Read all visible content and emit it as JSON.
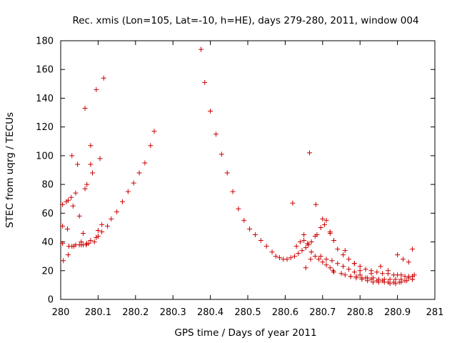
{
  "chart_data": {
    "type": "scatter",
    "title": "Rec. xmis (Lon=105, Lat=-10, h=HE), days 279-280, 2011, window 004",
    "xlabel": "GPS time / Days of year 2011",
    "ylabel": "STEC from uqrg / TECUs",
    "xlim": [
      280,
      281
    ],
    "ylim": [
      0,
      180
    ],
    "xticks": [
      280,
      280.1,
      280.2,
      280.3,
      280.4,
      280.5,
      280.6,
      280.7,
      280.8,
      280.9,
      281
    ],
    "xtick_labels": [
      "280",
      "280.1",
      "280.2",
      "280.3",
      "280.4",
      "280.5",
      "280.6",
      "280.7",
      "280.8",
      "280.9",
      "281"
    ],
    "yticks": [
      0,
      20,
      40,
      60,
      80,
      100,
      120,
      140,
      160,
      180
    ],
    "ytick_labels": [
      "0",
      "20",
      "40",
      "60",
      "80",
      "100",
      "120",
      "140",
      "160",
      "180"
    ],
    "grid": false,
    "marker": "plus",
    "color": "#cc0000",
    "series": [
      {
        "name": "STEC",
        "x": [
          280.005,
          280.005,
          280.005,
          280.007,
          280.015,
          280.018,
          280.02,
          280.022,
          280.03,
          280.035,
          280.045,
          280.055,
          280.06,
          280.065,
          280.07,
          280.075,
          280.085,
          280.095,
          280.105,
          280.115,
          280.028,
          280.033,
          280.04,
          280.05,
          280.055,
          280.065,
          280.068,
          280.08,
          280.08,
          280.095,
          280.1,
          280.11,
          280.02,
          280.03,
          280.04,
          280.05,
          280.06,
          280.07,
          280.08,
          280.09,
          280.1,
          280.11,
          280.125,
          280.135,
          280.15,
          280.165,
          280.18,
          280.195,
          280.21,
          280.225,
          280.24,
          280.25,
          280.375,
          280.385,
          280.4,
          280.415,
          280.43,
          280.445,
          280.46,
          280.475,
          280.49,
          280.505,
          280.52,
          280.535,
          280.55,
          280.565,
          280.575,
          280.585,
          280.595,
          280.605,
          280.615,
          280.625,
          280.635,
          280.645,
          280.655,
          280.662,
          280.67,
          280.685,
          280.695,
          280.71,
          280.72,
          280.73,
          280.74,
          280.755,
          280.77,
          280.785,
          280.8,
          280.815,
          280.83,
          280.845,
          280.86,
          280.875,
          280.89,
          280.9,
          280.91,
          280.92,
          280.93,
          280.94,
          280.945,
          280.62,
          280.63,
          280.64,
          280.65,
          280.66,
          280.67,
          280.68,
          280.69,
          280.7,
          280.71,
          280.72,
          280.728,
          280.73,
          280.75,
          280.76,
          280.775,
          280.79,
          280.805,
          280.82,
          280.835,
          280.85,
          280.865,
          280.88,
          280.895,
          280.91,
          280.93,
          280.94,
          280.65,
          280.655,
          280.668,
          280.68,
          280.695,
          280.71,
          280.725,
          280.74,
          280.755,
          280.77,
          280.785,
          280.8,
          280.815,
          280.83,
          280.845,
          280.86,
          280.875,
          280.89,
          280.905,
          280.92,
          280.94,
          280.665,
          280.682,
          280.7,
          280.705,
          280.72,
          280.76,
          280.785,
          280.8,
          280.83,
          280.855,
          280.875,
          280.9,
          280.915,
          280.93,
          280.94,
          280.775,
          280.79,
          280.805,
          280.82,
          280.835,
          280.85,
          280.865,
          280.88,
          280.895,
          280.91,
          280.925,
          280.94
        ],
        "y": [
          66,
          51,
          39,
          27,
          68,
          49,
          31,
          37,
          100,
          37,
          94,
          38,
          46,
          133,
          80,
          39,
          88,
          43,
          98,
          154,
          71,
          65,
          74,
          58,
          40,
          77,
          38,
          107,
          94,
          146,
          48,
          52,
          69,
          37,
          38,
          38,
          38,
          39,
          41,
          40,
          44,
          47,
          51,
          56,
          61,
          68,
          75,
          81,
          88,
          95,
          107,
          117,
          174,
          151,
          131,
          115,
          101,
          88,
          75,
          63,
          55,
          49,
          45,
          41,
          37,
          33,
          30,
          29,
          28,
          28,
          29,
          30,
          32,
          34,
          36,
          38,
          40,
          45,
          50,
          55,
          47,
          41,
          35,
          31,
          28,
          25,
          23,
          21,
          20,
          19,
          18,
          18,
          17,
          17,
          17,
          16,
          16,
          16,
          17,
          67,
          37,
          40,
          45,
          39,
          33,
          30,
          28,
          26,
          24,
          22,
          20,
          19,
          18,
          17,
          16,
          16,
          15,
          15,
          15,
          14,
          14,
          14,
          14,
          14,
          15,
          16,
          41,
          22,
          28,
          44,
          30,
          28,
          27,
          25,
          23,
          21,
          19,
          17,
          15,
          14,
          13,
          13,
          12,
          12,
          12,
          13,
          14,
          102,
          66,
          56,
          52,
          46,
          34,
          25,
          20,
          18,
          23,
          20,
          31,
          28,
          26,
          35,
          16,
          15,
          14,
          13,
          12,
          12,
          12,
          11,
          11,
          12,
          13,
          14
        ]
      }
    ]
  }
}
